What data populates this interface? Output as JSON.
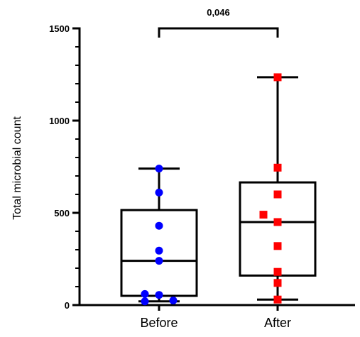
{
  "chart_data": {
    "type": "box",
    "ylabel": "Total microbial count",
    "xlabel": "",
    "ylim": [
      0,
      1500
    ],
    "yticks": [
      0,
      500,
      1000,
      1500
    ],
    "ytick_labels": [
      "0",
      "500",
      "1000",
      "1500"
    ],
    "categories": [
      "Before",
      "After"
    ],
    "groups": [
      {
        "name": "Before",
        "color": "#0000ff",
        "marker": "circle",
        "box": {
          "min": 20,
          "q1": 50,
          "median": 240,
          "q3": 515,
          "max": 740
        },
        "points": [
          740,
          610,
          430,
          295,
          240,
          60,
          55,
          25,
          20
        ]
      },
      {
        "name": "After",
        "color": "#ff0000",
        "marker": "square",
        "box": {
          "min": 30,
          "q1": 160,
          "median": 450,
          "q3": 665,
          "max": 1235
        },
        "points": [
          1235,
          745,
          600,
          490,
          450,
          320,
          180,
          120,
          30
        ]
      }
    ],
    "annotation": {
      "text": "0,046",
      "from": "Before",
      "to": "After",
      "level": 1500
    }
  }
}
